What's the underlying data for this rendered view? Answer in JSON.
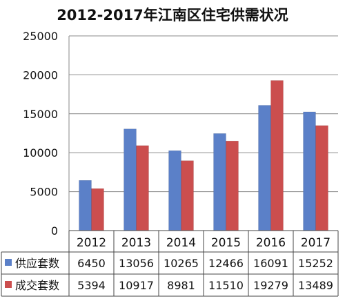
{
  "chart_data": {
    "type": "bar",
    "title": "2012-2017年江南区住宅供需状况",
    "categories": [
      "2012",
      "2013",
      "2014",
      "2015",
      "2016",
      "2017"
    ],
    "series": [
      {
        "name": "供应套数",
        "values": [
          6450,
          13056,
          10265,
          12466,
          16091,
          15252
        ],
        "color": "#5b80c8"
      },
      {
        "name": "成交套数",
        "values": [
          5394,
          10917,
          8981,
          11510,
          19279,
          13489
        ],
        "color": "#cb4e4e"
      }
    ],
    "ylim": [
      0,
      25000
    ],
    "yticks": [
      "0",
      "5000",
      "10000",
      "15000",
      "20000",
      "25000"
    ],
    "xlabel": "",
    "ylabel": "",
    "grid": true,
    "legend": "data-table"
  }
}
